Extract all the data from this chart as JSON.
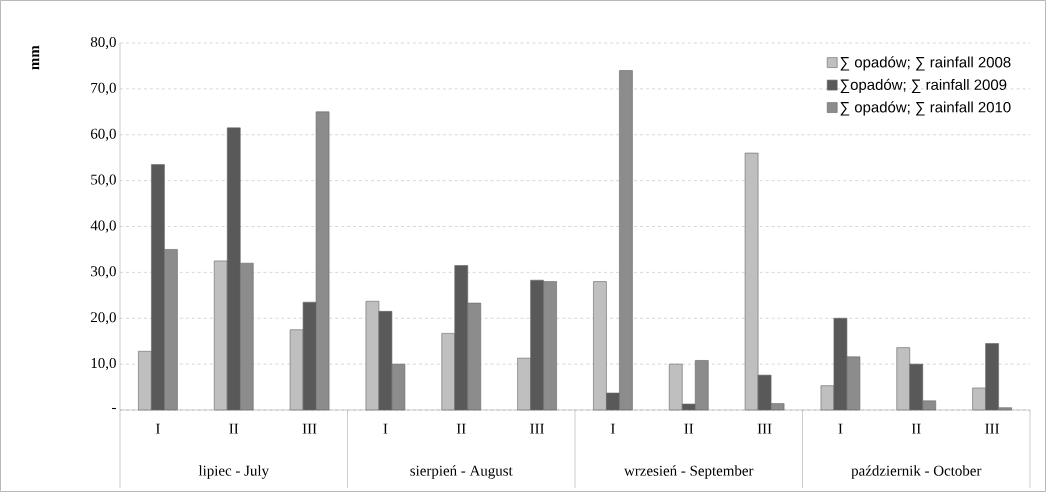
{
  "chart_data": {
    "type": "bar",
    "ylabel": "mm",
    "categories": [
      "I",
      "II",
      "III",
      "I",
      "II",
      "III",
      "I",
      "II",
      "III",
      "I",
      "II",
      "III"
    ],
    "annotations": [
      "lipiec - July",
      "sierpień - August",
      "wrzesień - September",
      "październik - October"
    ],
    "series": [
      {
        "name": "∑ opadów; ∑  rainfall 2008",
        "color": "#bfbfbf",
        "values": [
          12.8,
          32.5,
          17.5,
          23.7,
          16.7,
          11.3,
          28.0,
          10.0,
          56.0,
          5.3,
          13.6,
          4.8
        ]
      },
      {
        "name": "∑opadów; ∑  rainfall 2009",
        "color": "#595959",
        "values": [
          53.5,
          61.5,
          23.5,
          21.5,
          31.5,
          28.3,
          3.7,
          1.3,
          7.6,
          20.0,
          10.0,
          14.5
        ]
      },
      {
        "name": "∑ opadów; ∑  rainfall 2010",
        "color": "#8c8c8c",
        "values": [
          35.0,
          32.0,
          65.0,
          10.0,
          23.3,
          28.0,
          74.0,
          10.8,
          1.4,
          11.6,
          2.0,
          0.5
        ]
      }
    ],
    "ylim": [
      0,
      80
    ],
    "yticks": [
      {
        "value": 0,
        "label": "-"
      },
      {
        "value": 10,
        "label": "10,0"
      },
      {
        "value": 20,
        "label": "20,0"
      },
      {
        "value": 30,
        "label": "30,0"
      },
      {
        "value": 40,
        "label": "40,0"
      },
      {
        "value": 50,
        "label": "50,0"
      },
      {
        "value": 60,
        "label": "60,0"
      },
      {
        "value": 70,
        "label": "70,0"
      },
      {
        "value": 80,
        "label": "80,0"
      }
    ],
    "grid": "y",
    "legend": "top right"
  }
}
